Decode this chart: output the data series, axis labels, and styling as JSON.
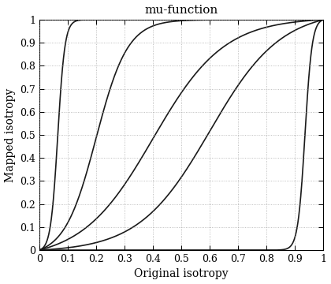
{
  "title": "mu-function",
  "xlabel": "Original isotropy",
  "ylabel": "Mapped isotropy",
  "xlim": [
    0,
    1
  ],
  "ylim": [
    0,
    1
  ],
  "xticks": [
    0,
    0.1,
    0.2,
    0.3,
    0.4,
    0.5,
    0.6,
    0.7,
    0.8,
    0.9,
    1.0
  ],
  "yticks": [
    0,
    0.1,
    0.2,
    0.3,
    0.4,
    0.5,
    0.6,
    0.7,
    0.8,
    0.9,
    1.0
  ],
  "line_color": "#1a1a1a",
  "line_width": 1.2,
  "background_color": "#ffffff",
  "grid_color": "#999999",
  "curves": [
    {
      "k": 80,
      "x0": 0.065
    },
    {
      "k": 18,
      "x0": 0.2
    },
    {
      "k": 8,
      "x0": 0.4
    },
    {
      "k": 8,
      "x0": 0.6
    },
    {
      "k": 80,
      "x0": 0.935
    }
  ],
  "title_fontsize": 11,
  "label_fontsize": 10,
  "tick_fontsize": 9,
  "figwidth": 4.2,
  "figheight": 3.6,
  "dpi": 100
}
